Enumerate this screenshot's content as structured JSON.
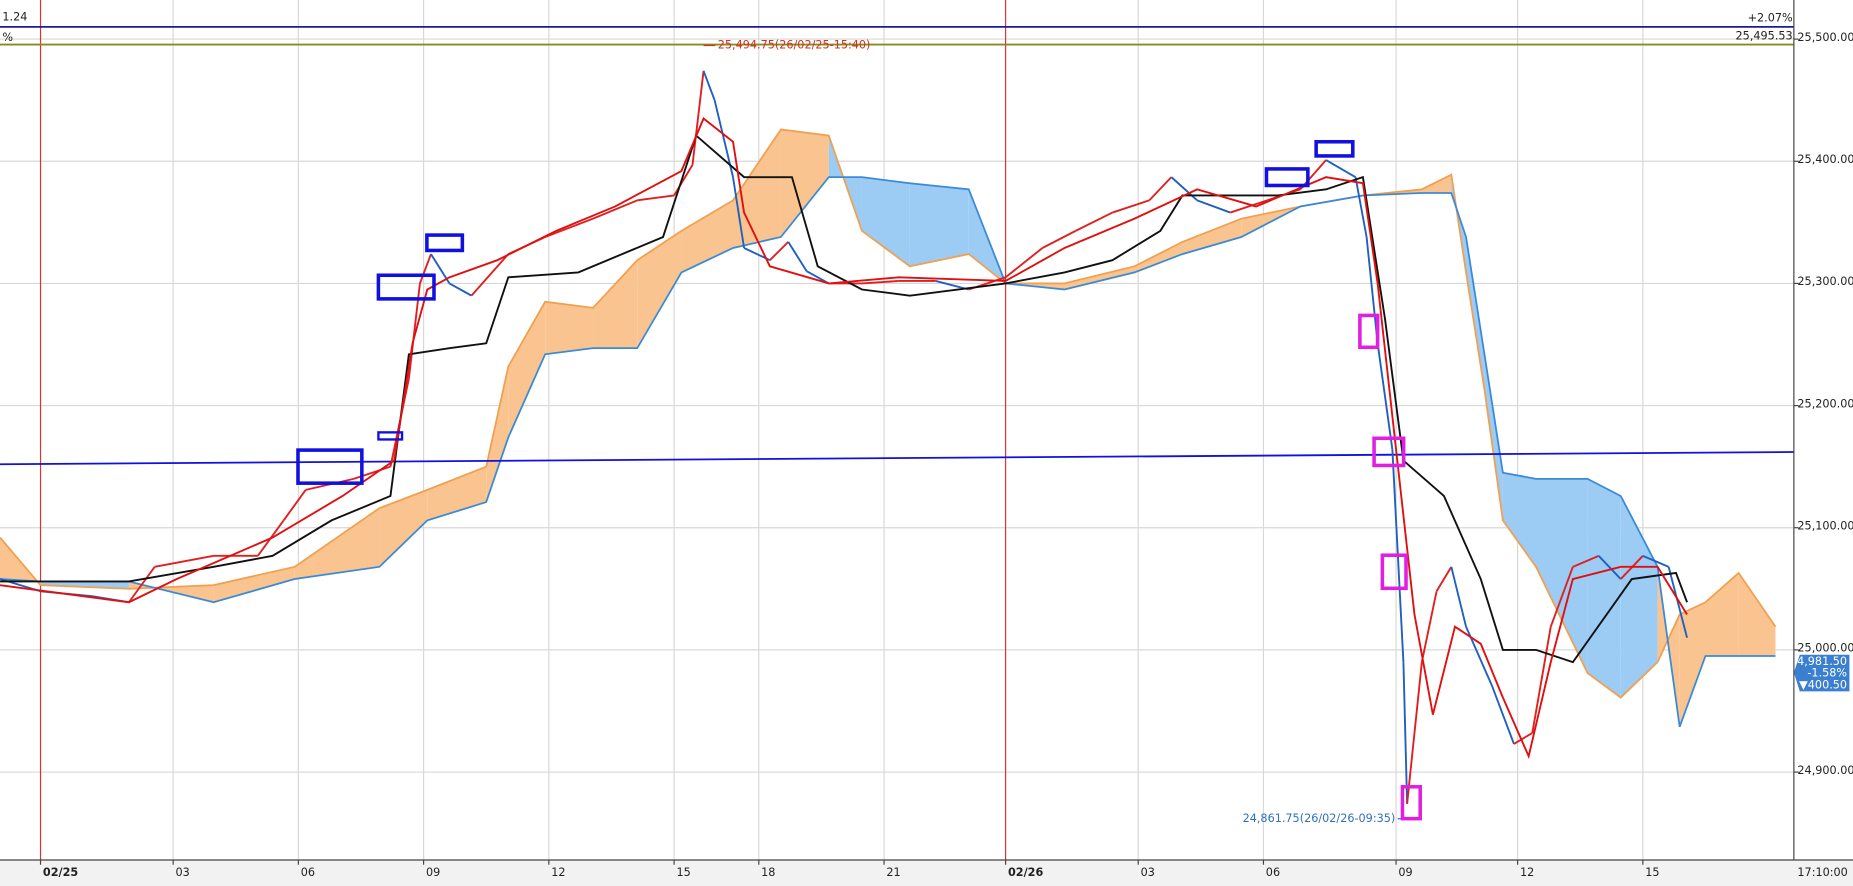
{
  "header": {
    "left_value": "1.24",
    "left_unit": "%",
    "time": "17:10:00"
  },
  "chart_data": {
    "type": "ichimoku",
    "xlim": [
      -11,
      476
    ],
    "ylim": [
      24828,
      25532
    ],
    "grid": true,
    "grid_color": "#d8d8d8",
    "separator_color": "#e03030",
    "xticks": [
      {
        "value": 0,
        "label": "02/25",
        "separator": true
      },
      {
        "value": 36,
        "label": "03"
      },
      {
        "value": 70,
        "label": "06"
      },
      {
        "value": 104,
        "label": "09"
      },
      {
        "value": 138,
        "label": "12"
      },
      {
        "value": 172,
        "label": "15"
      },
      {
        "value": 195,
        "label": "18"
      },
      {
        "value": 229,
        "label": "21"
      },
      {
        "value": 262,
        "label": "02/26",
        "separator": true
      },
      {
        "value": 298,
        "label": "03"
      },
      {
        "value": 332,
        "label": "06"
      },
      {
        "value": 368,
        "label": "09"
      },
      {
        "value": 401,
        "label": "12"
      },
      {
        "value": 435,
        "label": "15"
      }
    ],
    "yticks": [
      {
        "value": 24900,
        "label": "24,900.00"
      },
      {
        "value": 25000,
        "label": "25,000.00"
      },
      {
        "value": 25100,
        "label": "25,100.00"
      },
      {
        "value": 25200,
        "label": "25,200.00"
      },
      {
        "value": 25300,
        "label": "25,300.00"
      },
      {
        "value": 25400,
        "label": "25,400.00"
      },
      {
        "value": 25500,
        "label": "25,500.00"
      }
    ],
    "cloud": {
      "bull_color": "#f9c490",
      "bear_color": "#9ccbf4",
      "span_a_color": "#f0a050",
      "span_b_color": "#3a8ad8",
      "x": [
        -11,
        0,
        24,
        47,
        69,
        92,
        105,
        121,
        127,
        137,
        150,
        162,
        174,
        188,
        201,
        214,
        223,
        236,
        252,
        262,
        278,
        297,
        310,
        326,
        342,
        359,
        375,
        383,
        387,
        392,
        397,
        406,
        420,
        429,
        439,
        445,
        452,
        461,
        471
      ],
      "span_a": [
        25092,
        25053,
        25050,
        25053,
        25068,
        25116,
        25131,
        25150,
        25232,
        25285,
        25280,
        25319,
        25343,
        25368,
        25426,
        25421,
        25343,
        25314,
        25324,
        25300,
        25300,
        25314,
        25334,
        25353,
        25363,
        25372,
        25377,
        25389,
        25309,
        25213,
        25106,
        25068,
        24981,
        24961,
        24990,
        25029,
        25039,
        25063,
        25019
      ],
      "span_b": [
        25058,
        25056,
        25056,
        25039,
        25058,
        25068,
        25106,
        25121,
        25174,
        25242,
        25247,
        25247,
        25309,
        25329,
        25338,
        25387,
        25387,
        25382,
        25377,
        25300,
        25295,
        25309,
        25324,
        25338,
        25363,
        25372,
        25374,
        25374,
        25338,
        25242,
        25145,
        25140,
        25140,
        25126,
        25068,
        24937,
        24995,
        24995,
        24995
      ]
    },
    "price": {
      "up_color": "#e02020",
      "down_color": "#2060c0",
      "x": [
        -11,
        0,
        14,
        24,
        31,
        47,
        59,
        66,
        72,
        85,
        95,
        100,
        103,
        106,
        111,
        117,
        127,
        137,
        150,
        162,
        172,
        177,
        180,
        183,
        188,
        191,
        198,
        203,
        208,
        214,
        223,
        233,
        243,
        252,
        262,
        272,
        281,
        291,
        301,
        307,
        314,
        323,
        333,
        342,
        349,
        357,
        360,
        363,
        367,
        370,
        371,
        375,
        379,
        383,
        387,
        394,
        400,
        405,
        410,
        416,
        423,
        429,
        435,
        442,
        447
      ],
      "values": [
        25058,
        25048,
        25044,
        25039,
        25068,
        25077,
        25077,
        25106,
        25131,
        25140,
        25150,
        25222,
        25300,
        25324,
        25300,
        25290,
        25324,
        25338,
        25353,
        25368,
        25372,
        25397,
        25474,
        25450,
        25387,
        25329,
        25319,
        25334,
        25310,
        25300,
        25300,
        25302,
        25302,
        25295,
        25305,
        25329,
        25343,
        25358,
        25368,
        25387,
        25368,
        25358,
        25368,
        25377,
        25401,
        25387,
        25338,
        25251,
        25164,
        24990,
        24874,
        24990,
        25048,
        25068,
        25019,
        24971,
        24923,
        24932,
        25019,
        25068,
        25077,
        25058,
        25077,
        25068,
        25010
      ]
    },
    "series": [
      {
        "color": "#111111",
        "x": [
          -11,
          24,
          47,
          63,
          79,
          95,
          100,
          111,
          121,
          127,
          146,
          169,
          178,
          191,
          204,
          211,
          223,
          236,
          262,
          278,
          291,
          304,
          310,
          336,
          349,
          359,
          365,
          370,
          381,
          391,
          397,
          406,
          416,
          432,
          444,
          447
        ],
        "values": [
          25056,
          25056,
          25068,
          25077,
          25106,
          25126,
          25242,
          25247,
          25251,
          25305,
          25309,
          25338,
          25421,
          25387,
          25387,
          25314,
          25295,
          25290,
          25300,
          25309,
          25319,
          25343,
          25372,
          25372,
          25377,
          25387,
          25271,
          25155,
          25126,
          25058,
          25000,
          25000,
          24990,
          25058,
          25063,
          25039
        ]
      },
      {
        "color": "#e01010",
        "x": [
          -11,
          24,
          37,
          63,
          82,
          96,
          101,
          105,
          111,
          124,
          140,
          156,
          174,
          180,
          188,
          191,
          198,
          214,
          233,
          262,
          278,
          297,
          314,
          330,
          349,
          359,
          363,
          368,
          373,
          378,
          384,
          391,
          397,
          404,
          410,
          416,
          429,
          439,
          447
        ],
        "values": [
          25053,
          25039,
          25058,
          25092,
          25126,
          25155,
          25251,
          25295,
          25305,
          25319,
          25343,
          25363,
          25392,
          25435,
          25416,
          25358,
          25314,
          25300,
          25305,
          25302,
          25329,
          25353,
          25377,
          25363,
          25387,
          25382,
          25300,
          25164,
          25029,
          24947,
          25019,
          25005,
          24961,
          24913,
          24990,
          25058,
          25068,
          25068,
          25029
        ]
      }
    ],
    "trendline": {
      "color": "#1010e0",
      "x": [
        -11,
        476
      ],
      "values": [
        25152,
        25162
      ]
    },
    "hlines": [
      {
        "value": 25510,
        "label": "+2.07%",
        "color": "#1a1aa0"
      },
      {
        "value": 25495.53,
        "label": "25,495.53",
        "color": "#8a8a20"
      }
    ],
    "annotations": [
      {
        "x": 180,
        "value": 25494.75,
        "label": "25,494.75(26/02/25-15:40)",
        "color": "#d03020"
      },
      {
        "x": 371,
        "value": 24861.75,
        "label": "24,861.75(26/02/26-09:35)",
        "color": "#3070c0"
      }
    ],
    "last_price": {
      "value": 24981.5,
      "label": "24,981.50",
      "change": "-1.58%",
      "diff": "▼400.50",
      "color": "#3a7fd0"
    }
  }
}
